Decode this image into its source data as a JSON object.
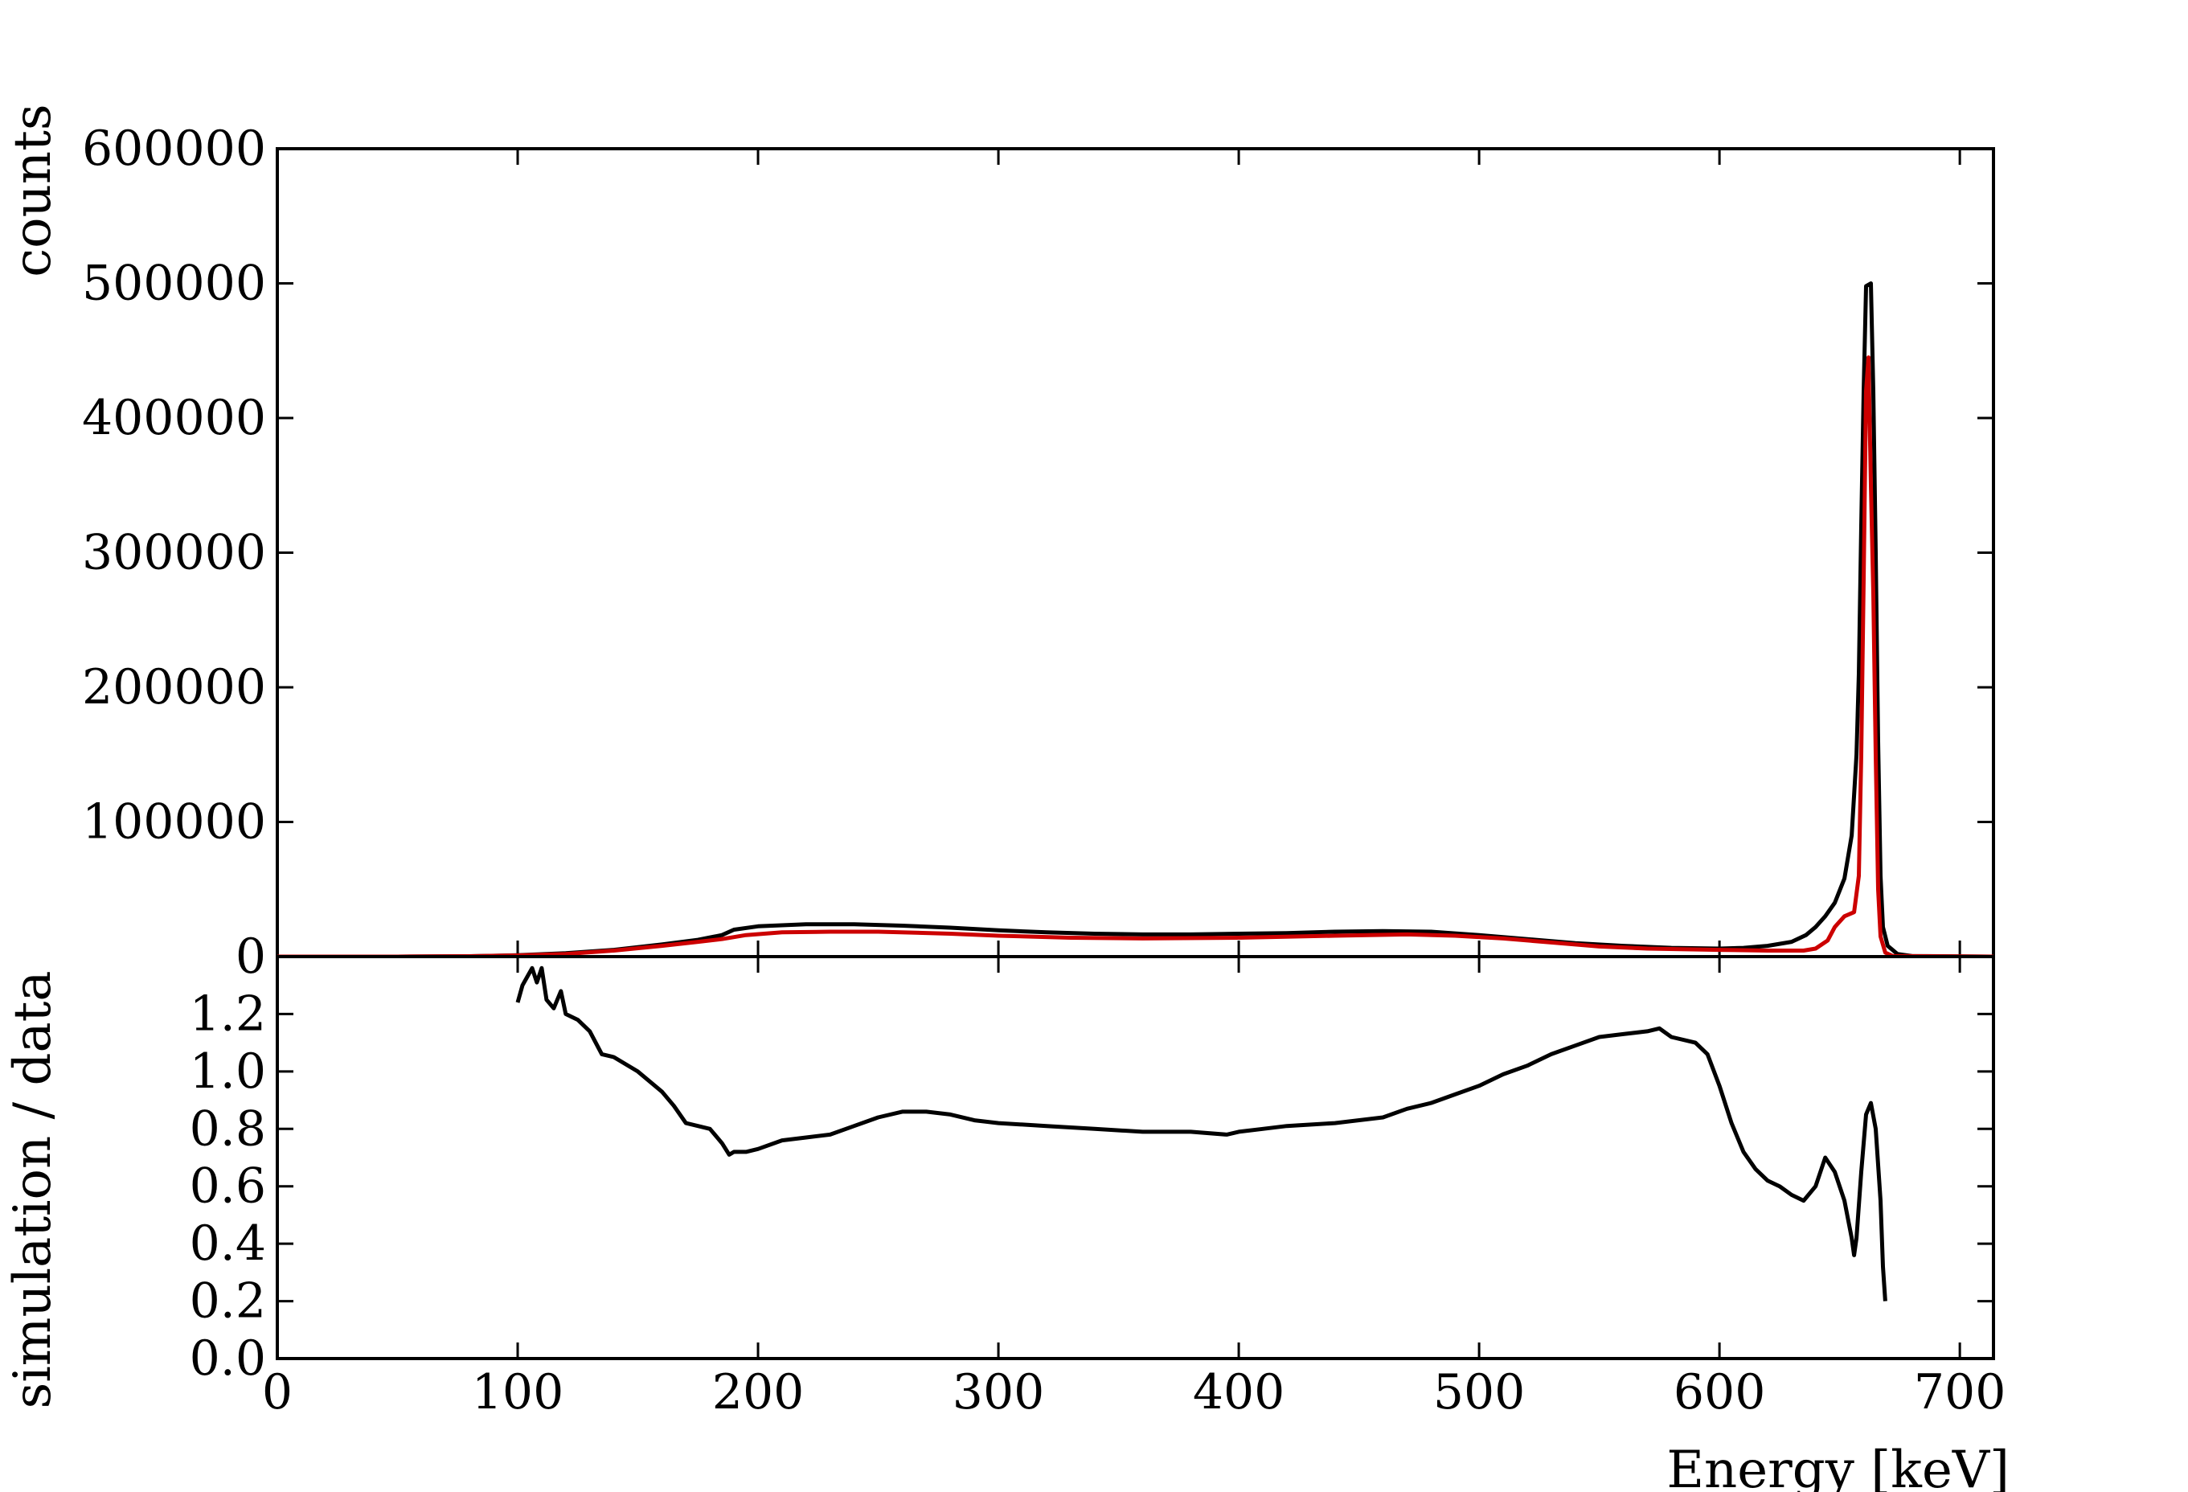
{
  "chart_data": [
    {
      "type": "line",
      "panel": "spectrum",
      "xlabel": "",
      "ylabel": "counts",
      "xlim": [
        0,
        714
      ],
      "ylim": [
        0,
        600000
      ],
      "yticks": [
        0,
        100000,
        200000,
        300000,
        400000,
        500000,
        600000
      ],
      "ytick_labels": [
        "0",
        "100000",
        "200000",
        "300000",
        "400000",
        "500000",
        "600000"
      ],
      "grid": false,
      "legend": "none",
      "series": [
        {
          "color": "#000000",
          "points": [
            [
              0,
              0
            ],
            [
              50,
              0
            ],
            [
              80,
              300
            ],
            [
              100,
              1000
            ],
            [
              120,
              2500
            ],
            [
              140,
              5000
            ],
            [
              160,
              9000
            ],
            [
              175,
              12500
            ],
            [
              185,
              16000
            ],
            [
              190,
              20000
            ],
            [
              200,
              22500
            ],
            [
              220,
              24000
            ],
            [
              240,
              24000
            ],
            [
              260,
              23000
            ],
            [
              280,
              21500
            ],
            [
              300,
              19500
            ],
            [
              320,
              18000
            ],
            [
              340,
              17000
            ],
            [
              360,
              16500
            ],
            [
              380,
              16500
            ],
            [
              400,
              17000
            ],
            [
              420,
              17500
            ],
            [
              440,
              18500
            ],
            [
              460,
              19000
            ],
            [
              480,
              18500
            ],
            [
              500,
              16000
            ],
            [
              520,
              13000
            ],
            [
              540,
              10000
            ],
            [
              560,
              8000
            ],
            [
              580,
              6500
            ],
            [
              600,
              6000
            ],
            [
              610,
              6500
            ],
            [
              620,
              8000
            ],
            [
              630,
              11000
            ],
            [
              636,
              16000
            ],
            [
              640,
              22000
            ],
            [
              644,
              30000
            ],
            [
              648,
              40000
            ],
            [
              652,
              58000
            ],
            [
              655,
              90000
            ],
            [
              657,
              150000
            ],
            [
              658,
              210000
            ],
            [
              659,
              320000
            ],
            [
              660,
              420000
            ],
            [
              661,
              498000
            ],
            [
              663,
              500000
            ],
            [
              664,
              420000
            ],
            [
              665,
              300000
            ],
            [
              666,
              160000
            ],
            [
              667,
              60000
            ],
            [
              668,
              22000
            ],
            [
              670,
              8000
            ],
            [
              674,
              2000
            ],
            [
              680,
              500
            ],
            [
              714,
              0
            ]
          ]
        },
        {
          "color": "#cc0000",
          "points": [
            [
              0,
              0
            ],
            [
              50,
              0
            ],
            [
              80,
              300
            ],
            [
              100,
              900
            ],
            [
              120,
              2000
            ],
            [
              140,
              4500
            ],
            [
              160,
              8000
            ],
            [
              175,
              11000
            ],
            [
              185,
              13000
            ],
            [
              195,
              16000
            ],
            [
              210,
              18000
            ],
            [
              230,
              18500
            ],
            [
              250,
              18500
            ],
            [
              280,
              17000
            ],
            [
              300,
              15500
            ],
            [
              330,
              14000
            ],
            [
              360,
              13500
            ],
            [
              400,
              14000
            ],
            [
              440,
              15500
            ],
            [
              470,
              16500
            ],
            [
              490,
              15500
            ],
            [
              510,
              13500
            ],
            [
              530,
              10500
            ],
            [
              550,
              7500
            ],
            [
              570,
              6000
            ],
            [
              600,
              5000
            ],
            [
              620,
              4500
            ],
            [
              635,
              4500
            ],
            [
              640,
              6000
            ],
            [
              645,
              12000
            ],
            [
              648,
              22000
            ],
            [
              652,
              30000
            ],
            [
              656,
              33000
            ],
            [
              658,
              60000
            ],
            [
              659,
              150000
            ],
            [
              660,
              280000
            ],
            [
              661,
              420000
            ],
            [
              662,
              445000
            ],
            [
              663,
              350000
            ],
            [
              664,
              270000
            ],
            [
              665,
              150000
            ],
            [
              666,
              50000
            ],
            [
              667,
              15000
            ],
            [
              669,
              3000
            ],
            [
              672,
              500
            ],
            [
              714,
              0
            ]
          ]
        }
      ]
    },
    {
      "type": "line",
      "panel": "ratio",
      "xlabel": "Energy [keV]",
      "ylabel": "simulation / data",
      "xlim": [
        0,
        714
      ],
      "ylim": [
        0.0,
        1.4
      ],
      "xticks": [
        0,
        100,
        200,
        300,
        400,
        500,
        600,
        700
      ],
      "xtick_labels": [
        "0",
        "100",
        "200",
        "300",
        "400",
        "500",
        "600",
        "700"
      ],
      "yticks": [
        0.0,
        0.2,
        0.4,
        0.6,
        0.8,
        1.0,
        1.2
      ],
      "ytick_labels": [
        "0.0",
        "0.2",
        "0.4",
        "0.6",
        "0.8",
        "1.0",
        "1.2"
      ],
      "grid": false,
      "legend": "none",
      "series": [
        {
          "color": "#000000",
          "points": [
            [
              100,
              1.24
            ],
            [
              102,
              1.3
            ],
            [
              104,
              1.33
            ],
            [
              106,
              1.36
            ],
            [
              108,
              1.31
            ],
            [
              110,
              1.36
            ],
            [
              112,
              1.25
            ],
            [
              115,
              1.22
            ],
            [
              118,
              1.28
            ],
            [
              120,
              1.2
            ],
            [
              125,
              1.18
            ],
            [
              130,
              1.14
            ],
            [
              135,
              1.06
            ],
            [
              140,
              1.05
            ],
            [
              150,
              1.0
            ],
            [
              160,
              0.93
            ],
            [
              165,
              0.88
            ],
            [
              170,
              0.82
            ],
            [
              175,
              0.81
            ],
            [
              180,
              0.8
            ],
            [
              185,
              0.75
            ],
            [
              188,
              0.71
            ],
            [
              190,
              0.72
            ],
            [
              195,
              0.72
            ],
            [
              200,
              0.73
            ],
            [
              210,
              0.76
            ],
            [
              220,
              0.77
            ],
            [
              230,
              0.78
            ],
            [
              240,
              0.81
            ],
            [
              250,
              0.84
            ],
            [
              260,
              0.86
            ],
            [
              270,
              0.86
            ],
            [
              280,
              0.85
            ],
            [
              290,
              0.83
            ],
            [
              300,
              0.82
            ],
            [
              320,
              0.81
            ],
            [
              340,
              0.8
            ],
            [
              360,
              0.79
            ],
            [
              380,
              0.79
            ],
            [
              395,
              0.78
            ],
            [
              400,
              0.79
            ],
            [
              410,
              0.8
            ],
            [
              420,
              0.81
            ],
            [
              440,
              0.82
            ],
            [
              460,
              0.84
            ],
            [
              470,
              0.87
            ],
            [
              480,
              0.89
            ],
            [
              490,
              0.92
            ],
            [
              500,
              0.95
            ],
            [
              510,
              0.99
            ],
            [
              520,
              1.02
            ],
            [
              530,
              1.06
            ],
            [
              540,
              1.09
            ],
            [
              550,
              1.12
            ],
            [
              560,
              1.13
            ],
            [
              570,
              1.14
            ],
            [
              575,
              1.15
            ],
            [
              580,
              1.12
            ],
            [
              590,
              1.1
            ],
            [
              595,
              1.06
            ],
            [
              600,
              0.95
            ],
            [
              605,
              0.82
            ],
            [
              610,
              0.72
            ],
            [
              615,
              0.66
            ],
            [
              620,
              0.62
            ],
            [
              625,
              0.6
            ],
            [
              630,
              0.57
            ],
            [
              635,
              0.55
            ],
            [
              640,
              0.6
            ],
            [
              644,
              0.7
            ],
            [
              648,
              0.65
            ],
            [
              652,
              0.55
            ],
            [
              655,
              0.42
            ],
            [
              656,
              0.36
            ],
            [
              657,
              0.42
            ],
            [
              659,
              0.65
            ],
            [
              661,
              0.85
            ],
            [
              663,
              0.89
            ],
            [
              665,
              0.8
            ],
            [
              667,
              0.55
            ],
            [
              668,
              0.32
            ],
            [
              669,
              0.2
            ]
          ]
        }
      ]
    }
  ]
}
